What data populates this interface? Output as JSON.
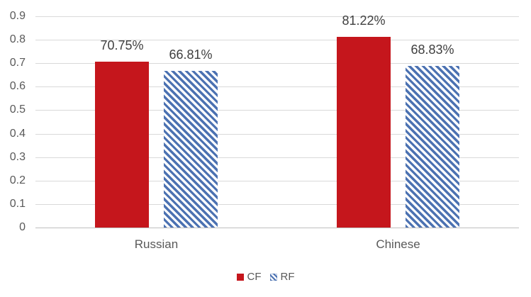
{
  "chart_data": {
    "type": "bar",
    "title": "",
    "xlabel": "",
    "ylabel": "",
    "categories": [
      "Russian",
      "Chinese"
    ],
    "series": [
      {
        "name": "CF",
        "fill": "solid",
        "color": "#c5161c",
        "values": [
          0.7075,
          0.8122
        ],
        "data_labels": [
          "70.75%",
          "81.22%"
        ]
      },
      {
        "name": "RF",
        "fill": "diagonal-hatch",
        "color": "#4c72b2",
        "values": [
          0.6681,
          0.6883
        ],
        "data_labels": [
          "66.81%",
          "68.83%"
        ]
      }
    ],
    "ylim": [
      0,
      0.9
    ],
    "yticks": [
      "0",
      "0.1",
      "0.2",
      "0.3",
      "0.4",
      "0.5",
      "0.6",
      "0.7",
      "0.8",
      "0.9"
    ],
    "grid": true,
    "legend_position": "bottom-center"
  },
  "colors": {
    "cf_red": "#c5161c",
    "rf_blue": "#4c72b2",
    "gridline": "#d9d9d9",
    "axis_line": "#bfbfbf",
    "tick_text": "#595959",
    "value_text": "#3f3f3f",
    "background": "#ffffff"
  }
}
